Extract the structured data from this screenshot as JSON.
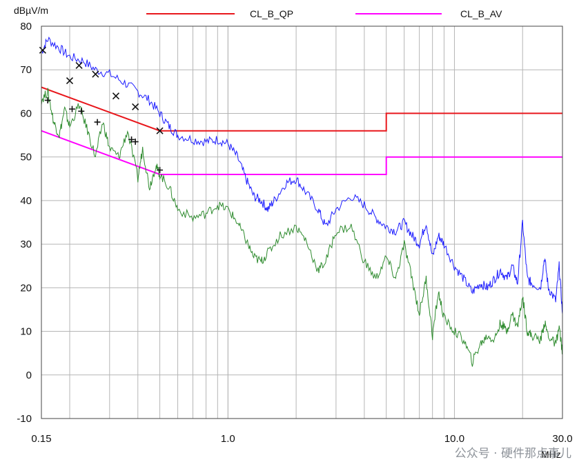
{
  "chart_data": {
    "type": "line",
    "ylabel": "dBµV/m",
    "xlabel": "MHz",
    "xscale": "log",
    "xlim": [
      0.15,
      30.0
    ],
    "ylim": [
      -10,
      80
    ],
    "y_ticks": [
      80,
      70,
      60,
      50,
      40,
      30,
      20,
      10,
      0,
      -10
    ],
    "x_tick_labels": [
      {
        "value": 0.15,
        "label": "0.15"
      },
      {
        "value": 1.0,
        "label": "1.0"
      },
      {
        "value": 10.0,
        "label": "10.0"
      },
      {
        "value": 30.0,
        "label": "30.0"
      }
    ],
    "grid": true,
    "legend_position": "top",
    "series": [
      {
        "name": "CL_B_QP",
        "color": "#e8161b",
        "kind": "limit",
        "points": [
          [
            0.15,
            66
          ],
          [
            0.5,
            56
          ],
          [
            5.0,
            56
          ],
          [
            5.0,
            60
          ],
          [
            30.0,
            60
          ]
        ]
      },
      {
        "name": "CL_B_AV",
        "color": "#ff00ff",
        "kind": "limit",
        "points": [
          [
            0.15,
            56
          ],
          [
            0.5,
            46
          ],
          [
            5.0,
            46
          ],
          [
            5.0,
            50
          ],
          [
            30.0,
            50
          ]
        ]
      }
    ],
    "traces": [
      {
        "id": "peak",
        "color": "#1a1aff",
        "points": [
          [
            0.15,
            74
          ],
          [
            0.16,
            77
          ],
          [
            0.18,
            75
          ],
          [
            0.2,
            73
          ],
          [
            0.23,
            72
          ],
          [
            0.26,
            70
          ],
          [
            0.3,
            69
          ],
          [
            0.35,
            67
          ],
          [
            0.4,
            65
          ],
          [
            0.45,
            63
          ],
          [
            0.5,
            60
          ],
          [
            0.55,
            57
          ],
          [
            0.6,
            55
          ],
          [
            0.7,
            54
          ],
          [
            0.8,
            53.5
          ],
          [
            0.9,
            54
          ],
          [
            1.0,
            53
          ],
          [
            1.1,
            50
          ],
          [
            1.2,
            45
          ],
          [
            1.3,
            41
          ],
          [
            1.4,
            40
          ],
          [
            1.5,
            38
          ],
          [
            1.6,
            40
          ],
          [
            1.8,
            44
          ],
          [
            2.0,
            45
          ],
          [
            2.2,
            42
          ],
          [
            2.5,
            38
          ],
          [
            2.7,
            34
          ],
          [
            3.0,
            38
          ],
          [
            3.5,
            41
          ],
          [
            4.0,
            39
          ],
          [
            4.5,
            36
          ],
          [
            5.0,
            34
          ],
          [
            5.5,
            33
          ],
          [
            6.0,
            35
          ],
          [
            6.5,
            32
          ],
          [
            7.0,
            30
          ],
          [
            7.5,
            35
          ],
          [
            8.0,
            27
          ],
          [
            8.5,
            32
          ],
          [
            9.0,
            30
          ],
          [
            10.0,
            25
          ],
          [
            11.0,
            22
          ],
          [
            12.0,
            19
          ],
          [
            13.0,
            21
          ],
          [
            14.0,
            20
          ],
          [
            15.0,
            22
          ],
          [
            16.0,
            24
          ],
          [
            17.0,
            22
          ],
          [
            18.0,
            25
          ],
          [
            19.0,
            21
          ],
          [
            20.0,
            35
          ],
          [
            21.0,
            22
          ],
          [
            22.0,
            21
          ],
          [
            24.0,
            20
          ],
          [
            25.0,
            27
          ],
          [
            26.0,
            20
          ],
          [
            28.0,
            17
          ],
          [
            29.0,
            25
          ],
          [
            30.0,
            14
          ]
        ]
      },
      {
        "id": "average",
        "color": "#2e8b2e",
        "points": [
          [
            0.15,
            63
          ],
          [
            0.16,
            65
          ],
          [
            0.17,
            58
          ],
          [
            0.18,
            55
          ],
          [
            0.19,
            61
          ],
          [
            0.2,
            57
          ],
          [
            0.22,
            62
          ],
          [
            0.24,
            56
          ],
          [
            0.26,
            50
          ],
          [
            0.28,
            58
          ],
          [
            0.3,
            52
          ],
          [
            0.33,
            50
          ],
          [
            0.36,
            56
          ],
          [
            0.4,
            45
          ],
          [
            0.42,
            52
          ],
          [
            0.45,
            43
          ],
          [
            0.48,
            48
          ],
          [
            0.5,
            46
          ],
          [
            0.55,
            43
          ],
          [
            0.6,
            38
          ],
          [
            0.7,
            36
          ],
          [
            0.8,
            37
          ],
          [
            0.9,
            39
          ],
          [
            1.0,
            38
          ],
          [
            1.1,
            35
          ],
          [
            1.2,
            31
          ],
          [
            1.3,
            27
          ],
          [
            1.4,
            26
          ],
          [
            1.5,
            28
          ],
          [
            1.7,
            32
          ],
          [
            2.0,
            34
          ],
          [
            2.2,
            31
          ],
          [
            2.5,
            24
          ],
          [
            2.7,
            26
          ],
          [
            3.0,
            33
          ],
          [
            3.5,
            34
          ],
          [
            4.0,
            26
          ],
          [
            4.5,
            22
          ],
          [
            5.0,
            27
          ],
          [
            5.5,
            22
          ],
          [
            6.0,
            30
          ],
          [
            6.5,
            22
          ],
          [
            7.0,
            14
          ],
          [
            7.5,
            22
          ],
          [
            8.0,
            9
          ],
          [
            8.5,
            19
          ],
          [
            9.0,
            13
          ],
          [
            10.0,
            10
          ],
          [
            11.0,
            8
          ],
          [
            12.0,
            3
          ],
          [
            13.0,
            7
          ],
          [
            14.0,
            9
          ],
          [
            15.0,
            8
          ],
          [
            16.0,
            12
          ],
          [
            17.0,
            10
          ],
          [
            18.0,
            14
          ],
          [
            19.0,
            11
          ],
          [
            20.0,
            18
          ],
          [
            21.0,
            10
          ],
          [
            22.0,
            9
          ],
          [
            24.0,
            8
          ],
          [
            25.0,
            12
          ],
          [
            26.0,
            9
          ],
          [
            28.0,
            7
          ],
          [
            29.0,
            11
          ],
          [
            30.0,
            5
          ]
        ]
      }
    ],
    "qp_markers": [
      [
        0.152,
        74.5
      ],
      [
        0.2,
        67.5
      ],
      [
        0.22,
        71
      ],
      [
        0.26,
        69
      ],
      [
        0.32,
        64
      ],
      [
        0.39,
        61.5
      ],
      [
        0.5,
        56
      ]
    ],
    "av_markers": [
      [
        0.16,
        63
      ],
      [
        0.205,
        61
      ],
      [
        0.225,
        60.5
      ],
      [
        0.265,
        58
      ],
      [
        0.375,
        54
      ],
      [
        0.39,
        53.5
      ],
      [
        0.5,
        47
      ]
    ]
  },
  "watermark": "公众号 · 硬件那点事儿"
}
